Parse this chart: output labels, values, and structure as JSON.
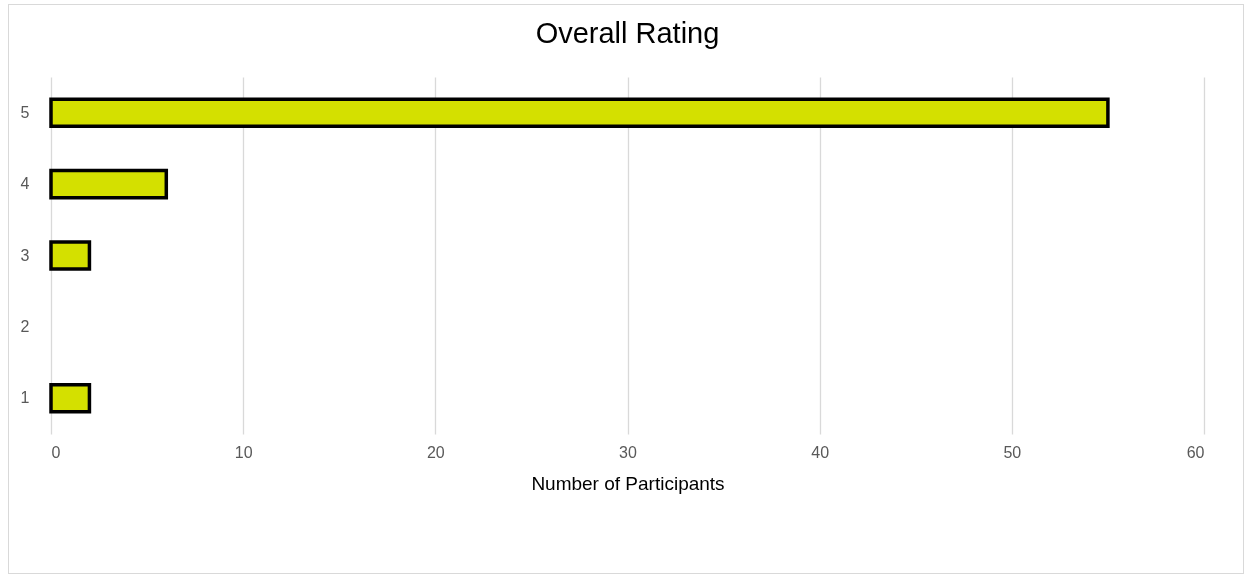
{
  "chart_data": {
    "type": "bar",
    "orientation": "horizontal",
    "title": "Overall Rating",
    "xlabel": "Number of Participants",
    "categories": [
      "5",
      "4",
      "3",
      "2",
      "1"
    ],
    "values": [
      55,
      6,
      2,
      null,
      2
    ],
    "color": "#d4e000",
    "xlim": [
      0,
      60
    ],
    "xticks": [
      0,
      10,
      20,
      30,
      40,
      50,
      60
    ],
    "grid": "x"
  }
}
